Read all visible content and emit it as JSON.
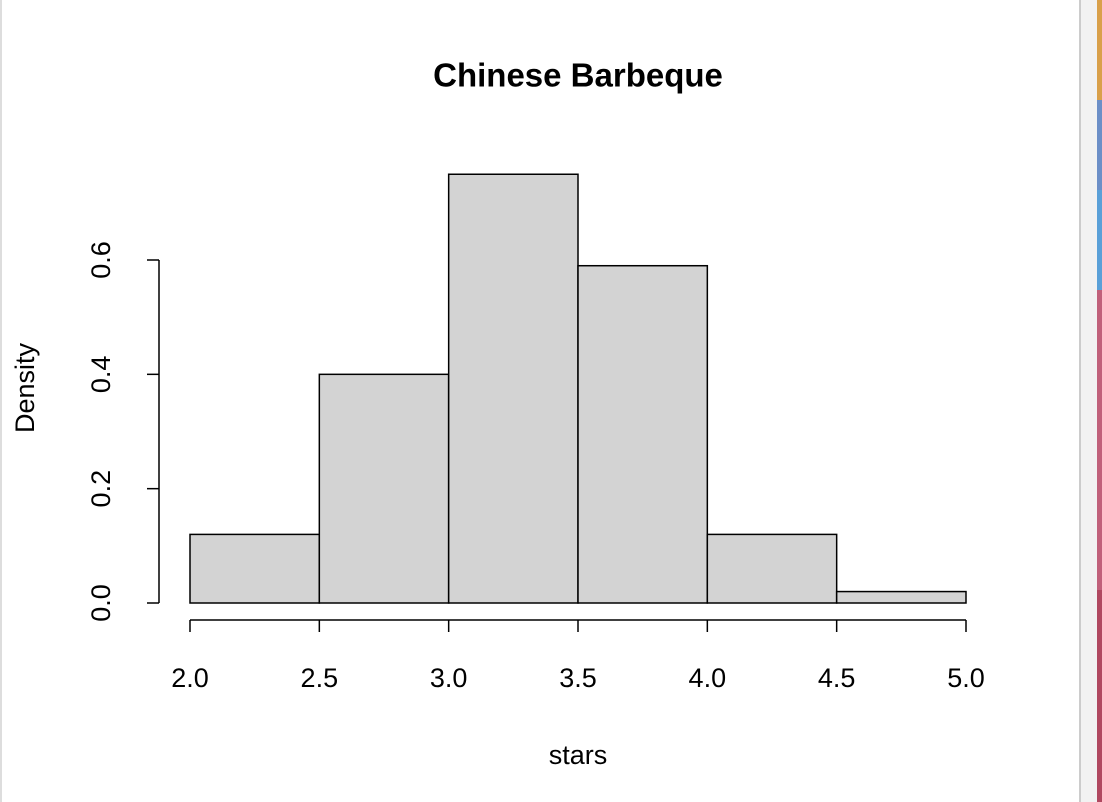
{
  "chart_data": {
    "type": "histogram",
    "title": "Chinese Barbeque",
    "x_label": "stars",
    "y_label": "Density",
    "bins": [
      2.0,
      2.5,
      3.0,
      3.5,
      4.0,
      4.5,
      5.0
    ],
    "values": [
      0.12,
      0.4,
      0.75,
      0.59,
      0.12,
      0.02
    ],
    "color": "#d3d3d3",
    "xlim": [
      2,
      5
    ],
    "xticks": [
      {
        "value": 2,
        "label": "2.0"
      },
      2.5,
      {
        "value": 3,
        "label": "3.0"
      },
      3.5,
      {
        "value": 4,
        "label": "4.0"
      },
      4.5,
      {
        "value": 5,
        "label": "5.0"
      }
    ],
    "ylim": [
      0,
      0.8
    ],
    "yticks": [
      {
        "value": 0,
        "label": "0.0"
      },
      0.2,
      0.4,
      0.6
    ]
  }
}
